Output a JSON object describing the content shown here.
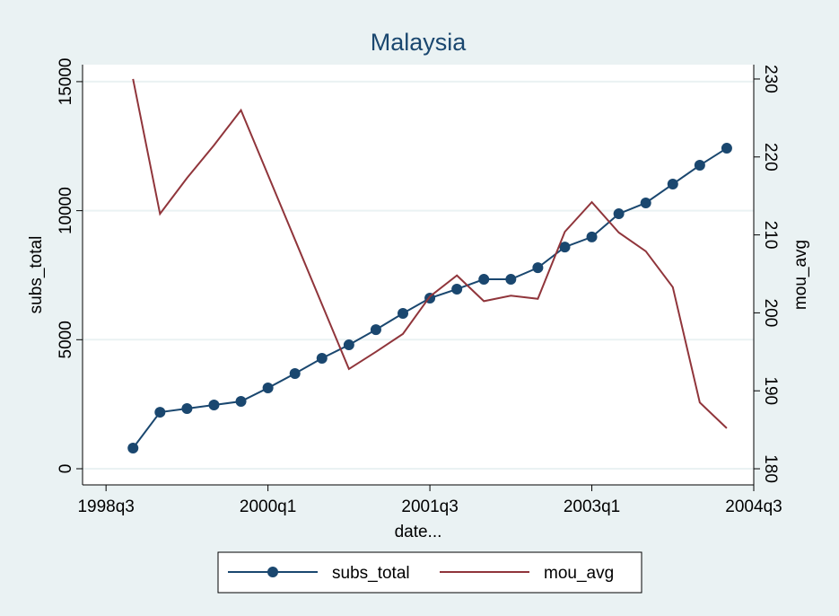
{
  "chart_data": {
    "type": "line",
    "title": "Malaysia",
    "x_label": "date...",
    "y_label": "subs_total",
    "y2_label": "mou_avg",
    "x": [
      155,
      156,
      157,
      158,
      159,
      160,
      161,
      162,
      163,
      164,
      165,
      166,
      167,
      168,
      169,
      170,
      171,
      172,
      173,
      174,
      175,
      176,
      177
    ],
    "series": [
      {
        "name": "subs_total",
        "color": "#1a476f",
        "marker": true,
        "values": [
          800,
          2190,
          2330,
          2470,
          2610,
          3130,
          3690,
          4280,
          4800,
          5390,
          6020,
          6610,
          6960,
          7340,
          7340,
          7790,
          8590,
          8980,
          9880,
          10300,
          11030,
          11760,
          12420
        ]
      },
      {
        "name": "mou_avg",
        "color": "#90353b",
        "axis": "y2",
        "marker": false,
        "values": [
          230.0,
          212.7,
          217.3,
          221.5,
          226.0,
          217.7,
          209.4,
          201.1,
          192.8,
          195.0,
          197.3,
          202.1,
          204.8,
          201.5,
          202.2,
          201.8,
          210.4,
          214.2,
          210.3,
          207.9,
          203.3,
          188.5,
          185.2
        ]
      }
    ],
    "xlim": [
      153.13,
      178
    ],
    "xticks": [
      {
        "value": 154,
        "label": "1998q3"
      },
      {
        "value": 160,
        "label": "2000q1"
      },
      {
        "value": 166,
        "label": "2001q3"
      },
      {
        "value": 172,
        "label": "2003q1"
      },
      {
        "value": 178,
        "label": "2004q3"
      }
    ],
    "ylim": [
      -626,
      15658
    ],
    "yticks": [
      0,
      5000,
      10000,
      15000
    ],
    "y2lim": [
      177.93,
      231.84
    ],
    "y2ticks": [
      180,
      190,
      200,
      210,
      220,
      230
    ],
    "grid": true,
    "legend": "bottom"
  }
}
